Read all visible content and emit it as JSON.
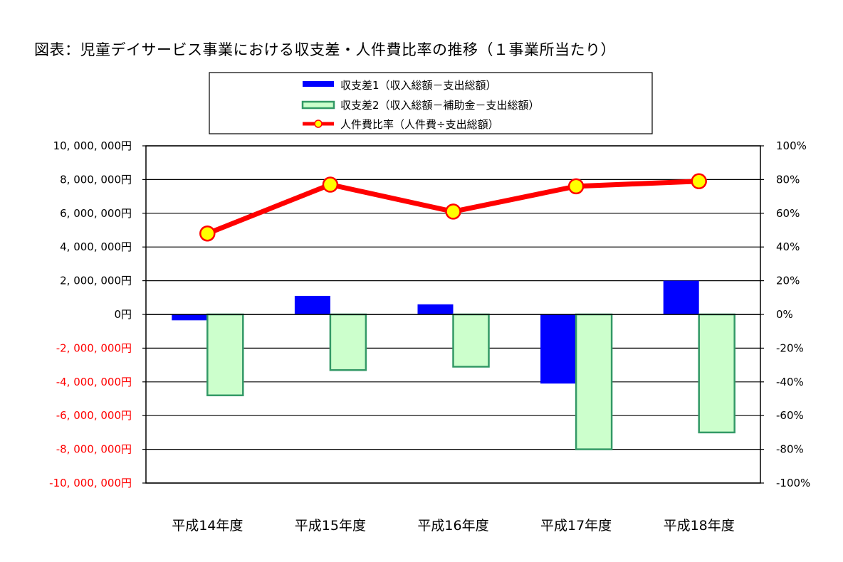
{
  "title": "図表：児童デイサービス事業における収支差・人件費比率の推移（１事業所当たり）",
  "colors": {
    "series1_fill": "#0000ff",
    "series2_fill": "#ccffcc",
    "series2_stroke": "#339966",
    "line": "#ff0000",
    "marker_fill": "#ffff00",
    "negative_tick": "#ff0000",
    "positive_tick": "#000000"
  },
  "chart_data": {
    "type": "bar",
    "title": "図表：児童デイサービス事業における収支差・人件費比率の推移（１事業所当たり）",
    "categories": [
      "平成14年度",
      "平成15年度",
      "平成16年度",
      "平成17年度",
      "平成18年度"
    ],
    "series": [
      {
        "name": "収支差1（収入総額－支出総額）",
        "kind": "bar",
        "axis": "left",
        "values": [
          -350000,
          1100000,
          600000,
          -4100000,
          2000000
        ]
      },
      {
        "name": "収支差2（収入総額－補助金－支出総額）",
        "kind": "bar",
        "axis": "left",
        "values": [
          -4800000,
          -3300000,
          -3100000,
          -8000000,
          -7000000
        ]
      },
      {
        "name": "人件費比率（人件費÷支出総額）",
        "kind": "line",
        "axis": "right",
        "values": [
          48,
          77,
          61,
          76,
          79
        ]
      }
    ],
    "y_left": {
      "ylim": [
        -10000000,
        10000000
      ],
      "ticks": [
        10000000,
        8000000,
        6000000,
        4000000,
        2000000,
        0,
        -2000000,
        -4000000,
        -6000000,
        -8000000,
        -10000000
      ],
      "tick_labels": [
        "10, 000, 000円",
        "8, 000, 000円",
        "6, 000, 000円",
        "4, 000, 000円",
        "2, 000, 000円",
        "0円",
        "-2, 000, 000円",
        "-4, 000, 000円",
        "-6, 000, 000円",
        "-8, 000, 000円",
        "-10, 000, 000円"
      ]
    },
    "y_right": {
      "ylim": [
        -100,
        100
      ],
      "ticks": [
        100,
        80,
        60,
        40,
        20,
        0,
        -20,
        -40,
        -60,
        -80,
        -100
      ],
      "tick_labels": [
        "100%",
        "80%",
        "60%",
        "40%",
        "20%",
        "0%",
        "-20%",
        "-40%",
        "-60%",
        "-80%",
        "-100%"
      ]
    },
    "grid": true,
    "legend": "top-center"
  }
}
